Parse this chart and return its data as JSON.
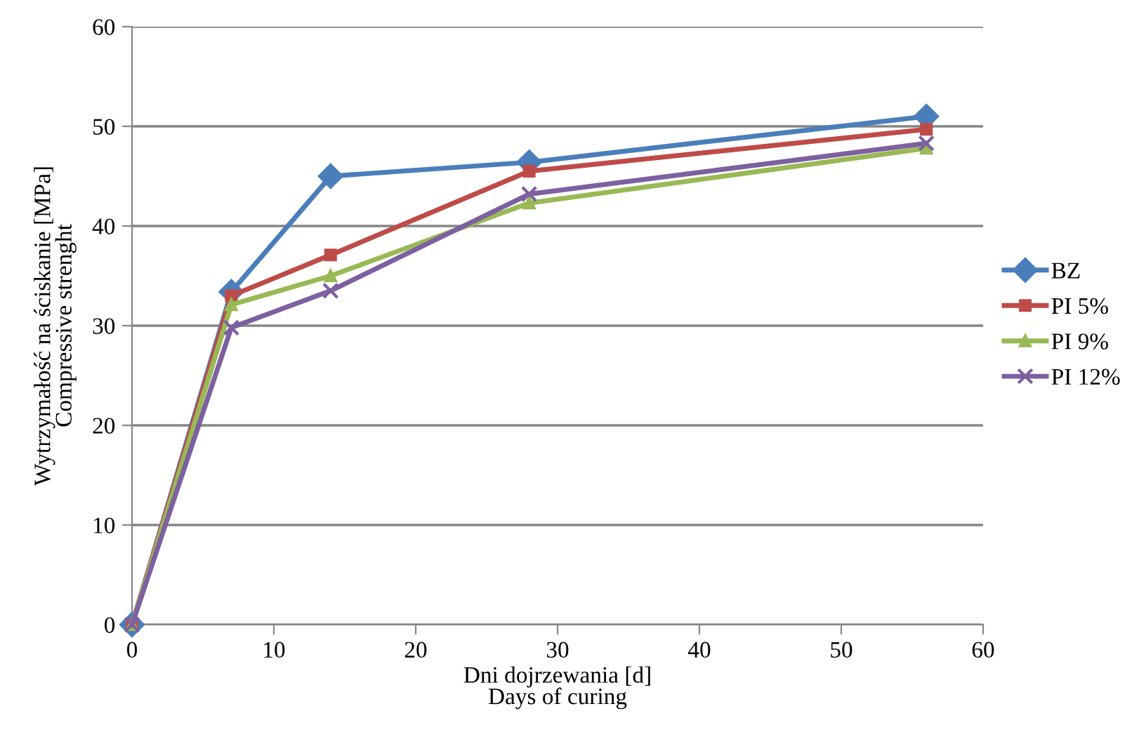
{
  "chart_data": {
    "type": "line",
    "xlabel": "Dni dojrzewania [d]\nDays of curing",
    "ylabel": "Wytrzymałość na ściskanie [MPa]\nCompressive strenght",
    "x": [
      0,
      7,
      14,
      28,
      56
    ],
    "series": [
      {
        "name": "BZ",
        "color": "#4a7ebb",
        "marker": "diamond",
        "values": [
          0,
          33.4,
          45.0,
          46.4,
          51.0
        ]
      },
      {
        "name": "PI 5%",
        "color": "#be4b48",
        "marker": "square",
        "values": [
          0,
          33.0,
          37.1,
          45.5,
          49.7
        ]
      },
      {
        "name": "PI 9%",
        "color": "#98b954",
        "marker": "triangle",
        "values": [
          0,
          32.1,
          35.0,
          42.3,
          47.8
        ]
      },
      {
        "name": "PI 12%",
        "color": "#7d60a0",
        "marker": "cross",
        "values": [
          0,
          29.8,
          33.5,
          43.2,
          48.3
        ]
      }
    ],
    "xlim": [
      0,
      60
    ],
    "xticks": [
      0,
      10,
      20,
      30,
      40,
      50,
      60
    ],
    "ylim": [
      0,
      60
    ],
    "yticks": [
      0,
      10,
      20,
      30,
      40,
      50,
      60
    ],
    "grid": "y",
    "legend": "right",
    "line_style": "solid"
  }
}
